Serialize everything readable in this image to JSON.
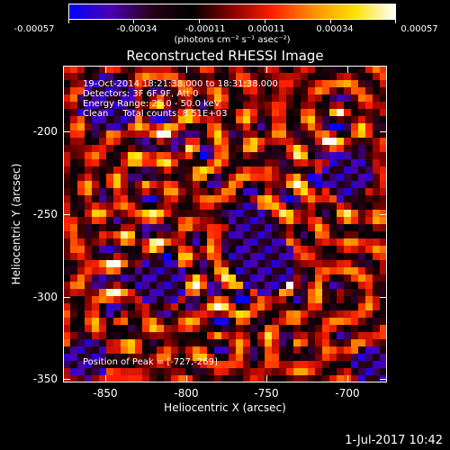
{
  "colorbar": {
    "tick_labels": [
      "-0.00057",
      "-0.00034",
      "-0.00011",
      "0.00011",
      "0.00034",
      "0.00057"
    ],
    "units": "(photons cm⁻² s⁻¹ asec⁻²)",
    "colors": [
      "#0000ff",
      "#4b00b4",
      "#2a0018",
      "#000000",
      "#8a0000",
      "#ff2000",
      "#ff9000",
      "#ffe000",
      "#ffffff"
    ]
  },
  "plot": {
    "title": "Reconstructed RHESSI Image",
    "annotation": {
      "line1": "19-Oct-2014 18:21:38.000 to 18:31:38.000",
      "line2": "Detectors: 3F 6F 9F, Att 0",
      "line3": "Energy Range: 25.0 - 50.0 keV",
      "line4": "Clean     Total counts: 8.51E+03",
      "peak": "Position of Peak = [-727,-269]"
    },
    "x_axis": {
      "label": "Heliocentric X (arcsec)",
      "ticks": [
        "-850",
        "-800",
        "-750",
        "-700"
      ],
      "range": [
        -877,
        -676
      ]
    },
    "y_axis": {
      "label": "Heliocentric Y (arcsec)",
      "ticks": [
        "-200",
        "-250",
        "-300",
        "-350"
      ],
      "range": [
        -354,
        -165
      ]
    }
  },
  "footer": {
    "timestamp": "1-Jul-2017 10:42"
  }
}
